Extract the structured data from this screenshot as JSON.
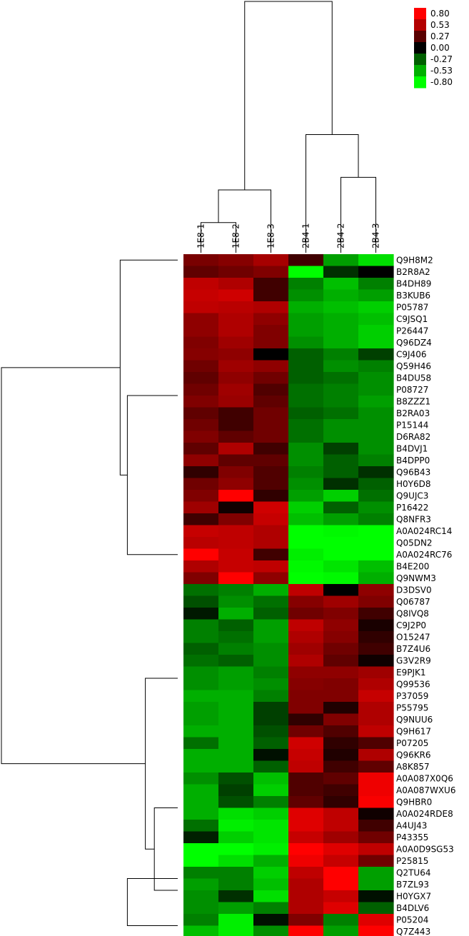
{
  "chart_data": {
    "type": "heatmap",
    "columns": [
      "1E8-1",
      "1E8-2",
      "1E8-3",
      "2B4-1",
      "2B4-2",
      "2B4-3"
    ],
    "rows": [
      "Q9H8M2",
      "B2R8A2",
      "B4DH89",
      "B3KUB6",
      "P05787",
      "C9JSQ1",
      "P26447",
      "Q96DZ4",
      "C9J406",
      "Q59H46",
      "B4DU58",
      "P08727",
      "B8ZZZ1",
      "B2RA03",
      "P15144",
      "D6RA82",
      "B4DVJ1",
      "B4DPP0",
      "Q96B43",
      "H0Y6D8",
      "Q9UJC3",
      "P16422",
      "Q8NFR3",
      "A0A024RC14",
      "Q05DN2",
      "A0A024RC76",
      "B4E200",
      "Q9NWM3",
      "D3DSV0",
      "Q06787",
      "Q8IVQ8",
      "C9J2P0",
      "O15247",
      "B7Z4U6",
      "G3V2R9",
      "E9PJK1",
      "Q99536",
      "P37059",
      "P55795",
      "Q9NUU6",
      "Q9H617",
      "P07205",
      "Q96KR6",
      "A8K857",
      "A0A087X0Q6",
      "A0A087WXU6",
      "Q9HBR0",
      "A0A024RDE8",
      "A4UJ43",
      "P43355",
      "A0A0D9SG53",
      "P25815",
      "Q2TU64",
      "B7ZL93",
      "H0YGX7",
      "B4DLV6",
      "P05204",
      "Q7Z443"
    ],
    "values": [
      [
        0.38,
        0.42,
        0.52,
        0.2,
        -0.5,
        -0.7
      ],
      [
        0.3,
        0.35,
        0.4,
        -0.8,
        -0.15,
        0.0
      ],
      [
        0.6,
        0.55,
        0.2,
        -0.4,
        -0.6,
        -0.4
      ],
      [
        0.62,
        0.65,
        0.2,
        -0.45,
        -0.55,
        -0.5
      ],
      [
        0.6,
        0.58,
        0.55,
        -0.55,
        -0.6,
        -0.65
      ],
      [
        0.45,
        0.55,
        0.45,
        -0.5,
        -0.55,
        -0.6
      ],
      [
        0.45,
        0.55,
        0.4,
        -0.5,
        -0.55,
        -0.65
      ],
      [
        0.4,
        0.5,
        0.4,
        -0.45,
        -0.55,
        -0.65
      ],
      [
        0.42,
        0.45,
        0.0,
        -0.3,
        -0.4,
        -0.2
      ],
      [
        0.35,
        0.5,
        0.45,
        -0.3,
        -0.45,
        -0.4
      ],
      [
        0.3,
        0.45,
        0.35,
        -0.3,
        -0.35,
        -0.45
      ],
      [
        0.35,
        0.5,
        0.25,
        -0.35,
        -0.4,
        -0.45
      ],
      [
        0.4,
        0.48,
        0.3,
        -0.35,
        -0.4,
        -0.5
      ],
      [
        0.3,
        0.2,
        0.35,
        -0.3,
        -0.35,
        -0.45
      ],
      [
        0.35,
        0.2,
        0.35,
        -0.35,
        -0.45,
        -0.45
      ],
      [
        0.4,
        0.3,
        0.35,
        -0.35,
        -0.45,
        -0.45
      ],
      [
        0.3,
        0.55,
        0.2,
        -0.45,
        -0.2,
        -0.45
      ],
      [
        0.45,
        0.3,
        0.3,
        -0.45,
        -0.3,
        -0.4
      ],
      [
        0.15,
        0.4,
        0.25,
        -0.4,
        -0.3,
        -0.15
      ],
      [
        0.35,
        0.45,
        0.25,
        -0.45,
        -0.15,
        -0.3
      ],
      [
        0.4,
        0.8,
        0.15,
        -0.5,
        -0.65,
        -0.35
      ],
      [
        0.5,
        0.05,
        0.65,
        -0.65,
        -0.3,
        -0.45
      ],
      [
        0.2,
        0.4,
        0.62,
        -0.6,
        -0.5,
        -0.4
      ],
      [
        0.62,
        0.6,
        0.55,
        -0.8,
        -0.78,
        -0.8
      ],
      [
        0.58,
        0.6,
        0.55,
        -0.8,
        -0.8,
        -0.8
      ],
      [
        0.8,
        0.62,
        0.2,
        -0.75,
        -0.8,
        -0.8
      ],
      [
        0.55,
        0.62,
        0.6,
        -0.78,
        -0.72,
        -0.6
      ],
      [
        0.4,
        0.8,
        0.45,
        -0.8,
        -0.78,
        -0.55
      ],
      [
        -0.35,
        -0.4,
        -0.55,
        0.6,
        0.0,
        0.45
      ],
      [
        -0.25,
        -0.45,
        -0.35,
        0.42,
        0.5,
        0.4
      ],
      [
        -0.08,
        -0.55,
        -0.3,
        0.35,
        0.4,
        0.2
      ],
      [
        -0.4,
        -0.3,
        -0.5,
        0.6,
        0.45,
        0.08
      ],
      [
        -0.4,
        -0.35,
        -0.5,
        0.55,
        0.42,
        0.15
      ],
      [
        -0.3,
        -0.4,
        -0.45,
        0.5,
        0.35,
        0.2
      ],
      [
        -0.35,
        -0.3,
        -0.45,
        0.55,
        0.3,
        0.05
      ],
      [
        -0.45,
        -0.5,
        -0.4,
        0.45,
        0.45,
        0.5
      ],
      [
        -0.45,
        -0.5,
        -0.45,
        0.42,
        0.4,
        0.55
      ],
      [
        -0.55,
        -0.55,
        -0.4,
        0.4,
        0.4,
        0.62
      ],
      [
        -0.5,
        -0.55,
        -0.2,
        0.4,
        0.1,
        0.55
      ],
      [
        -0.5,
        -0.55,
        -0.2,
        0.15,
        0.4,
        0.55
      ],
      [
        -0.55,
        -0.55,
        -0.25,
        0.35,
        0.25,
        0.6
      ],
      [
        -0.35,
        -0.55,
        -0.3,
        0.65,
        0.15,
        0.25
      ],
      [
        -0.55,
        -0.55,
        -0.05,
        0.62,
        0.1,
        0.55
      ],
      [
        -0.55,
        -0.55,
        -0.3,
        0.6,
        0.2,
        0.3
      ],
      [
        -0.45,
        -0.25,
        -0.6,
        0.25,
        0.3,
        0.75
      ],
      [
        -0.55,
        -0.2,
        -0.65,
        0.25,
        0.2,
        0.75
      ],
      [
        -0.55,
        -0.25,
        -0.4,
        0.3,
        0.15,
        0.78
      ],
      [
        -0.55,
        -0.7,
        -0.65,
        0.7,
        0.6,
        0.05
      ],
      [
        -0.35,
        -0.75,
        -0.72,
        0.7,
        0.6,
        0.2
      ],
      [
        -0.1,
        -0.65,
        -0.72,
        0.62,
        0.5,
        0.35
      ],
      [
        -0.8,
        -0.8,
        -0.75,
        0.8,
        0.7,
        0.6
      ],
      [
        -0.8,
        -0.7,
        -0.55,
        0.75,
        0.62,
        0.35
      ],
      [
        -0.4,
        -0.4,
        -0.65,
        0.6,
        0.8,
        -0.5
      ],
      [
        -0.5,
        -0.4,
        -0.6,
        0.55,
        0.8,
        -0.5
      ],
      [
        -0.45,
        -0.15,
        -0.7,
        0.55,
        0.62,
        -0.05
      ],
      [
        -0.45,
        -0.5,
        -0.4,
        0.55,
        0.7,
        -0.3
      ],
      [
        -0.4,
        -0.75,
        -0.05,
        0.4,
        -0.4,
        0.7
      ],
      [
        -0.6,
        -0.75,
        -0.45,
        0.8,
        -0.5,
        0.8
      ]
    ],
    "colorbar": {
      "ticks": [
        "0.80",
        "0.53",
        "0.27",
        "0.00",
        "-0.27",
        "-0.53",
        "-0.80"
      ],
      "colors": [
        "#ff0000",
        "#b40000",
        "#5a0000",
        "#000000",
        "#006000",
        "#00b000",
        "#00ff00"
      ],
      "range": [
        -0.8,
        0.8
      ]
    },
    "palette": {
      "high": "#ff0000",
      "mid": "#000000",
      "low": "#00ff00"
    },
    "column_tree": [
      {
        "a": "c0",
        "b": "c1",
        "h": 0.12
      },
      {
        "a": "c0|c1",
        "b": "c2",
        "h": 0.25
      },
      {
        "a": "c4",
        "b": "c5",
        "h": 0.3
      },
      {
        "a": "c3",
        "b": "c4|c5",
        "h": 0.47
      },
      {
        "a": "c0|c1|c2",
        "b": "c3|c4|c5",
        "h": 1.0
      }
    ],
    "row_tree": [
      {
        "a": "r0:27",
        "b": "r28:57",
        "h": 1.0
      },
      {
        "a": "r0",
        "b": "r1:27",
        "h": 0.34
      },
      {
        "a": "r1:22",
        "b": "r23:27",
        "h": 0.3
      },
      {
        "a": "r28:43",
        "b": "r44:57",
        "h": 0.2
      },
      {
        "a": "r44:49",
        "b": "r50:57",
        "h": 0.15
      },
      {
        "a": "r50:55",
        "b": "r56:57",
        "h": 0.3
      }
    ]
  }
}
